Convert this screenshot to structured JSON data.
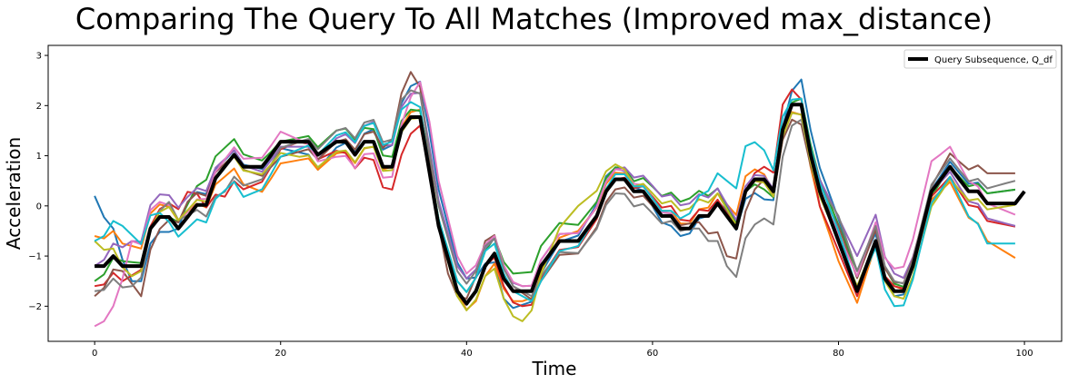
{
  "chart_data": {
    "type": "line",
    "title": "Comparing The Query To All Matches (Improved max_distance)",
    "xlabel": "Time",
    "ylabel": "Acceleration",
    "xlim": [
      -5,
      104
    ],
    "ylim": [
      -2.7,
      3.2
    ],
    "xticks": [
      0,
      20,
      40,
      60,
      80,
      100
    ],
    "yticks": [
      -2,
      -1,
      0,
      1,
      2,
      3
    ],
    "legend": {
      "position": "top-right",
      "entries": [
        "Query Subsequence, Q_df"
      ]
    },
    "grid": false,
    "colors": [
      "#1f77b4",
      "#ff7f0e",
      "#2ca02c",
      "#d62728",
      "#9467bd",
      "#8c564b",
      "#e377c2",
      "#7f7f7f",
      "#bcbd22",
      "#17becf"
    ],
    "query_color": "#000000",
    "query": {
      "name": "Query Subsequence, Q_df",
      "anchors": [
        [
          0,
          -1.2
        ],
        [
          1,
          -1.2
        ],
        [
          2,
          -1.0
        ],
        [
          3,
          -1.2
        ],
        [
          4,
          -1.2
        ],
        [
          5,
          -1.2
        ],
        [
          6,
          -0.45
        ],
        [
          7,
          -0.22
        ],
        [
          8,
          -0.22
        ],
        [
          9,
          -0.45
        ],
        [
          10,
          -0.22
        ],
        [
          11,
          0.02
        ],
        [
          12,
          0.02
        ],
        [
          13,
          0.55
        ],
        [
          15,
          1.02
        ],
        [
          16,
          0.78
        ],
        [
          18,
          0.78
        ],
        [
          19,
          1.02
        ],
        [
          20,
          1.28
        ],
        [
          23,
          1.28
        ],
        [
          24,
          1.02
        ],
        [
          26,
          1.28
        ],
        [
          27,
          1.28
        ],
        [
          28,
          1.02
        ],
        [
          29,
          1.28
        ],
        [
          30,
          1.28
        ],
        [
          31,
          0.78
        ],
        [
          32,
          0.78
        ],
        [
          33,
          1.52
        ],
        [
          34,
          1.77
        ],
        [
          35,
          1.77
        ],
        [
          37,
          -0.4
        ],
        [
          39,
          -1.7
        ],
        [
          40,
          -1.95
        ],
        [
          41,
          -1.7
        ],
        [
          42,
          -1.2
        ],
        [
          43,
          -0.95
        ],
        [
          44,
          -1.45
        ],
        [
          45,
          -1.7
        ],
        [
          47,
          -1.7
        ],
        [
          48,
          -1.2
        ],
        [
          50,
          -0.7
        ],
        [
          52,
          -0.7
        ],
        [
          53,
          -0.45
        ],
        [
          54,
          -0.2
        ],
        [
          55,
          0.29
        ],
        [
          56,
          0.53
        ],
        [
          57,
          0.53
        ],
        [
          58,
          0.29
        ],
        [
          59,
          0.29
        ],
        [
          60,
          0.05
        ],
        [
          61,
          -0.2
        ],
        [
          62,
          -0.2
        ],
        [
          63,
          -0.45
        ],
        [
          64,
          -0.45
        ],
        [
          65,
          -0.2
        ],
        [
          66,
          -0.2
        ],
        [
          67,
          0.05
        ],
        [
          68,
          -0.2
        ],
        [
          69,
          -0.45
        ],
        [
          70,
          0.29
        ],
        [
          71,
          0.53
        ],
        [
          72,
          0.53
        ],
        [
          73,
          0.29
        ],
        [
          74,
          1.52
        ],
        [
          75,
          2.02
        ],
        [
          76,
          2.02
        ],
        [
          77,
          1.03
        ],
        [
          78,
          0.29
        ],
        [
          79,
          -0.2
        ],
        [
          80,
          -0.7
        ],
        [
          81,
          -1.2
        ],
        [
          82,
          -1.7
        ],
        [
          83,
          -1.2
        ],
        [
          84,
          -0.7
        ],
        [
          85,
          -1.45
        ],
        [
          86,
          -1.7
        ],
        [
          87,
          -1.7
        ],
        [
          88,
          -1.2
        ],
        [
          89,
          -0.45
        ],
        [
          90,
          0.29
        ],
        [
          91,
          0.53
        ],
        [
          92,
          0.78
        ],
        [
          93,
          0.53
        ],
        [
          94,
          0.29
        ],
        [
          95,
          0.29
        ],
        [
          96,
          0.05
        ],
        [
          99,
          0.05
        ],
        [
          100,
          0.29
        ]
      ]
    },
    "matches": [
      {
        "offsets": [
          [
            0,
            1.4
          ],
          [
            4,
            -0.3
          ],
          [
            8,
            -0.3
          ],
          [
            10,
            0.3
          ],
          [
            24,
            -0.3
          ],
          [
            36,
            0.8
          ],
          [
            40,
            0.5
          ],
          [
            44,
            -0.4
          ],
          [
            55,
            0.3
          ],
          [
            62,
            -0.2
          ],
          [
            68,
            0.1
          ],
          [
            72,
            -0.4
          ],
          [
            76,
            0.5
          ],
          [
            82,
            0.4
          ],
          [
            86,
            -0.1
          ],
          [
            92,
            0.1
          ],
          [
            100,
            0.3
          ]
        ]
      },
      {
        "offsets": [
          [
            0,
            0.6
          ],
          [
            4,
            0.4
          ],
          [
            10,
            0.1
          ],
          [
            18,
            -0.5
          ],
          [
            30,
            -0.1
          ],
          [
            36,
            0.2
          ],
          [
            41,
            -0.2
          ],
          [
            46,
            -0.2
          ],
          [
            52,
            0.2
          ],
          [
            58,
            0.1
          ],
          [
            64,
            0.1
          ],
          [
            70,
            0.3
          ],
          [
            74,
            -0.1
          ],
          [
            80,
            -0.4
          ],
          [
            86,
            0.1
          ],
          [
            92,
            -0.3
          ],
          [
            100,
            -1.2
          ]
        ]
      },
      {
        "offsets": [
          [
            0,
            -0.3
          ],
          [
            3,
            0.1
          ],
          [
            8,
            0.0
          ],
          [
            12,
            0.5
          ],
          [
            20,
            0.0
          ],
          [
            28,
            0.3
          ],
          [
            36,
            0.1
          ],
          [
            42,
            0.3
          ],
          [
            48,
            0.4
          ],
          [
            58,
            0.2
          ],
          [
            64,
            0.6
          ],
          [
            72,
            -0.2
          ],
          [
            77,
            0.2
          ],
          [
            82,
            0.4
          ],
          [
            90,
            -0.1
          ],
          [
            96,
            0.2
          ],
          [
            100,
            0.3
          ]
        ]
      },
      {
        "offsets": [
          [
            0,
            -0.4
          ],
          [
            3,
            -0.3
          ],
          [
            10,
            0.5
          ],
          [
            14,
            -0.6
          ],
          [
            22,
            0.0
          ],
          [
            33,
            -0.5
          ],
          [
            36,
            0.0
          ],
          [
            42,
            0.0
          ],
          [
            46,
            -0.3
          ],
          [
            56,
            0.0
          ],
          [
            62,
            0.2
          ],
          [
            70,
            0.0
          ],
          [
            74,
            0.5
          ],
          [
            78,
            -0.3
          ],
          [
            80,
            -0.2
          ],
          [
            86,
            0.1
          ],
          [
            92,
            -0.2
          ],
          [
            100,
            -0.5
          ]
        ]
      },
      {
        "offsets": [
          [
            0,
            0.0
          ],
          [
            4,
            0.5
          ],
          [
            10,
            0.4
          ],
          [
            18,
            -0.1
          ],
          [
            24,
            -0.1
          ],
          [
            30,
            0.4
          ],
          [
            36,
            0.5
          ],
          [
            40,
            0.5
          ],
          [
            46,
            0.1
          ],
          [
            56,
            0.2
          ],
          [
            64,
            0.5
          ],
          [
            70,
            0.1
          ],
          [
            76,
            0.0
          ],
          [
            82,
            0.7
          ],
          [
            90,
            0.0
          ],
          [
            96,
            -0.3
          ],
          [
            100,
            -0.5
          ]
        ]
      },
      {
        "offsets": [
          [
            0,
            -0.6
          ],
          [
            3,
            -0.1
          ],
          [
            5,
            -0.6
          ],
          [
            10,
            0.3
          ],
          [
            20,
            -0.3
          ],
          [
            30,
            0.2
          ],
          [
            34,
            0.9
          ],
          [
            38,
            -0.3
          ],
          [
            42,
            0.5
          ],
          [
            48,
            -0.3
          ],
          [
            56,
            -0.2
          ],
          [
            64,
            0.1
          ],
          [
            68,
            -0.8
          ],
          [
            72,
            0.0
          ],
          [
            76,
            -0.4
          ],
          [
            80,
            0.3
          ],
          [
            90,
            0.1
          ],
          [
            96,
            0.6
          ],
          [
            100,
            0.6
          ]
        ]
      },
      {
        "offsets": [
          [
            0,
            -1.2
          ],
          [
            2,
            -1.0
          ],
          [
            4,
            0.5
          ],
          [
            10,
            0.1
          ],
          [
            20,
            0.2
          ],
          [
            26,
            -0.3
          ],
          [
            32,
            -0.2
          ],
          [
            36,
            1.0
          ],
          [
            40,
            0.6
          ],
          [
            46,
            0.1
          ],
          [
            56,
            0.2
          ],
          [
            64,
            0.0
          ],
          [
            70,
            0.0
          ],
          [
            76,
            -0.2
          ],
          [
            82,
            0.3
          ],
          [
            90,
            0.6
          ],
          [
            96,
            0.0
          ],
          [
            100,
            -0.3
          ]
        ]
      },
      {
        "offsets": [
          [
            0,
            -0.5
          ],
          [
            4,
            -0.4
          ],
          [
            8,
            0.3
          ],
          [
            14,
            -0.5
          ],
          [
            22,
            0.0
          ],
          [
            33,
            0.6
          ],
          [
            36,
            0.4
          ],
          [
            42,
            0.4
          ],
          [
            48,
            -0.2
          ],
          [
            58,
            -0.3
          ],
          [
            64,
            0.0
          ],
          [
            68,
            -1.0
          ],
          [
            71,
            -0.9
          ],
          [
            76,
            -0.3
          ],
          [
            80,
            0.5
          ],
          [
            88,
            0.1
          ],
          [
            94,
            0.2
          ],
          [
            100,
            0.5
          ]
        ]
      },
      {
        "offsets": [
          [
            0,
            0.5
          ],
          [
            4,
            -0.2
          ],
          [
            8,
            0.2
          ],
          [
            14,
            0.0
          ],
          [
            22,
            -0.3
          ],
          [
            30,
            -0.1
          ],
          [
            36,
            0.0
          ],
          [
            42,
            -0.2
          ],
          [
            46,
            -0.6
          ],
          [
            52,
            0.7
          ],
          [
            58,
            0.1
          ],
          [
            64,
            0.4
          ],
          [
            70,
            0.0
          ],
          [
            76,
            -0.2
          ],
          [
            82,
            0.1
          ],
          [
            90,
            -0.3
          ],
          [
            100,
            0.0
          ]
        ]
      },
      {
        "offsets": [
          [
            0,
            0.5
          ],
          [
            3,
            0.8
          ],
          [
            8,
            -0.1
          ],
          [
            16,
            -0.6
          ],
          [
            24,
            0.0
          ],
          [
            32,
            0.5
          ],
          [
            36,
            0.1
          ],
          [
            42,
            0.3
          ],
          [
            48,
            -0.3
          ],
          [
            56,
            0.1
          ],
          [
            62,
            0.1
          ],
          [
            70,
            0.9
          ],
          [
            75,
            0.1
          ],
          [
            80,
            0.2
          ],
          [
            86,
            -0.3
          ],
          [
            92,
            -0.2
          ],
          [
            96,
            -0.8
          ],
          [
            100,
            -0.8
          ]
        ]
      }
    ]
  }
}
